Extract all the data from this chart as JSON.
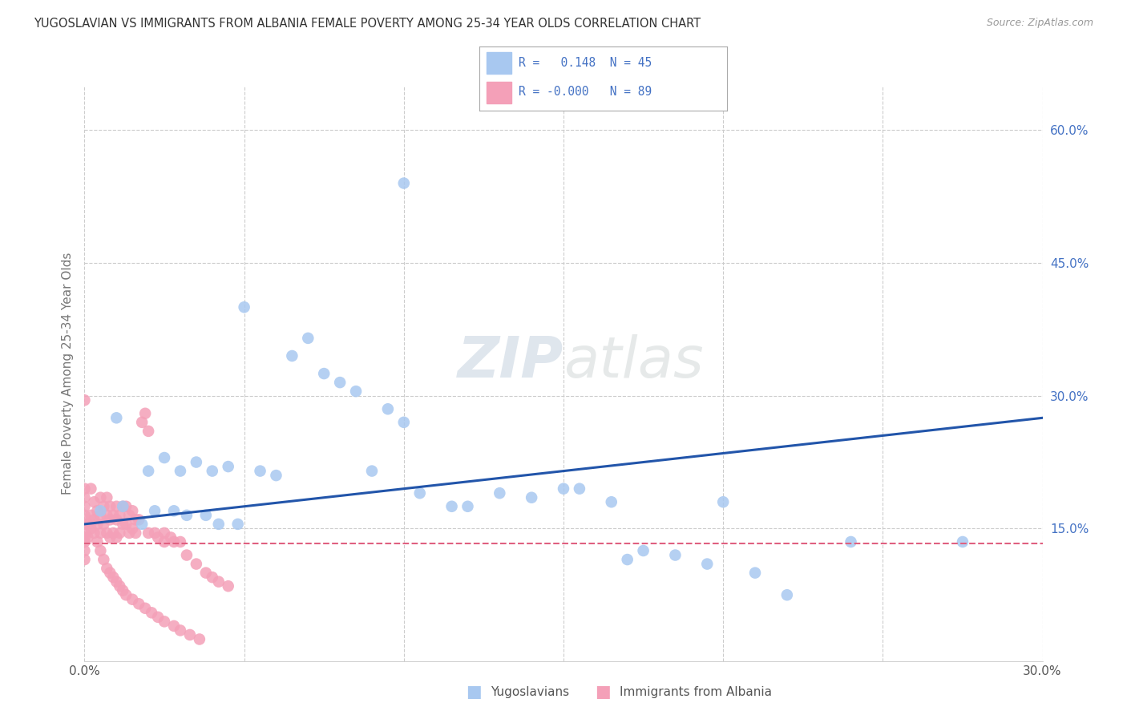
{
  "title": "YUGOSLAVIAN VS IMMIGRANTS FROM ALBANIA FEMALE POVERTY AMONG 25-34 YEAR OLDS CORRELATION CHART",
  "source": "Source: ZipAtlas.com",
  "ylabel": "Female Poverty Among 25-34 Year Olds",
  "watermark_zip": "ZIP",
  "watermark_atlas": "atlas",
  "xlim": [
    0.0,
    0.3
  ],
  "ylim": [
    0.0,
    0.65
  ],
  "xticks": [
    0.0,
    0.05,
    0.1,
    0.15,
    0.2,
    0.25,
    0.3
  ],
  "xtick_labels": [
    "0.0%",
    "",
    "",
    "",
    "",
    "",
    "30.0%"
  ],
  "yticks_right": [
    0.15,
    0.3,
    0.45,
    0.6
  ],
  "ytick_labels_right": [
    "15.0%",
    "30.0%",
    "45.0%",
    "60.0%"
  ],
  "blue_color": "#A8C8F0",
  "pink_color": "#F4A0B8",
  "line_blue": "#2255AA",
  "line_pink": "#E06080",
  "right_tick_color": "#4472C4",
  "grid_color": "#CCCCCC",
  "blue_line_x": [
    0.0,
    0.3
  ],
  "blue_line_y": [
    0.155,
    0.275
  ],
  "pink_line_x": [
    0.0,
    0.3
  ],
  "pink_line_y": [
    0.133,
    0.133
  ],
  "blue_dots_x": [
    0.1,
    0.05,
    0.07,
    0.065,
    0.075,
    0.08,
    0.085,
    0.095,
    0.1,
    0.01,
    0.025,
    0.02,
    0.03,
    0.035,
    0.04,
    0.045,
    0.055,
    0.06,
    0.09,
    0.105,
    0.115,
    0.12,
    0.13,
    0.14,
    0.15,
    0.155,
    0.165,
    0.17,
    0.175,
    0.185,
    0.195,
    0.2,
    0.21,
    0.22,
    0.24,
    0.005,
    0.012,
    0.018,
    0.022,
    0.028,
    0.032,
    0.038,
    0.042,
    0.048,
    0.275
  ],
  "blue_dots_y": [
    0.54,
    0.4,
    0.365,
    0.345,
    0.325,
    0.315,
    0.305,
    0.285,
    0.27,
    0.275,
    0.23,
    0.215,
    0.215,
    0.225,
    0.215,
    0.22,
    0.215,
    0.21,
    0.215,
    0.19,
    0.175,
    0.175,
    0.19,
    0.185,
    0.195,
    0.195,
    0.18,
    0.115,
    0.125,
    0.12,
    0.11,
    0.18,
    0.1,
    0.075,
    0.135,
    0.17,
    0.175,
    0.155,
    0.17,
    0.17,
    0.165,
    0.165,
    0.155,
    0.155,
    0.135
  ],
  "pink_dots_x": [
    0.0,
    0.0,
    0.0,
    0.0,
    0.0,
    0.0,
    0.0,
    0.0,
    0.0,
    0.0,
    0.002,
    0.002,
    0.003,
    0.003,
    0.004,
    0.004,
    0.005,
    0.005,
    0.005,
    0.006,
    0.006,
    0.007,
    0.007,
    0.007,
    0.008,
    0.008,
    0.008,
    0.009,
    0.009,
    0.01,
    0.01,
    0.01,
    0.011,
    0.011,
    0.012,
    0.012,
    0.013,
    0.013,
    0.014,
    0.014,
    0.015,
    0.015,
    0.016,
    0.016,
    0.017,
    0.018,
    0.019,
    0.02,
    0.02,
    0.022,
    0.023,
    0.025,
    0.025,
    0.027,
    0.028,
    0.03,
    0.032,
    0.035,
    0.038,
    0.04,
    0.042,
    0.045,
    0.0,
    0.001,
    0.001,
    0.002,
    0.003,
    0.004,
    0.005,
    0.006,
    0.007,
    0.008,
    0.009,
    0.01,
    0.011,
    0.012,
    0.013,
    0.015,
    0.017,
    0.019,
    0.021,
    0.023,
    0.025,
    0.028,
    0.03,
    0.033,
    0.036
  ],
  "pink_dots_y": [
    0.295,
    0.195,
    0.185,
    0.175,
    0.165,
    0.155,
    0.145,
    0.135,
    0.125,
    0.115,
    0.195,
    0.165,
    0.18,
    0.16,
    0.17,
    0.155,
    0.185,
    0.165,
    0.145,
    0.175,
    0.155,
    0.185,
    0.165,
    0.145,
    0.175,
    0.16,
    0.14,
    0.165,
    0.145,
    0.175,
    0.16,
    0.14,
    0.165,
    0.145,
    0.175,
    0.155,
    0.175,
    0.155,
    0.165,
    0.145,
    0.17,
    0.15,
    0.16,
    0.145,
    0.16,
    0.27,
    0.28,
    0.26,
    0.145,
    0.145,
    0.14,
    0.145,
    0.135,
    0.14,
    0.135,
    0.135,
    0.12,
    0.11,
    0.1,
    0.095,
    0.09,
    0.085,
    0.14,
    0.155,
    0.14,
    0.15,
    0.145,
    0.135,
    0.125,
    0.115,
    0.105,
    0.1,
    0.095,
    0.09,
    0.085,
    0.08,
    0.075,
    0.07,
    0.065,
    0.06,
    0.055,
    0.05,
    0.045,
    0.04,
    0.035,
    0.03,
    0.025
  ]
}
